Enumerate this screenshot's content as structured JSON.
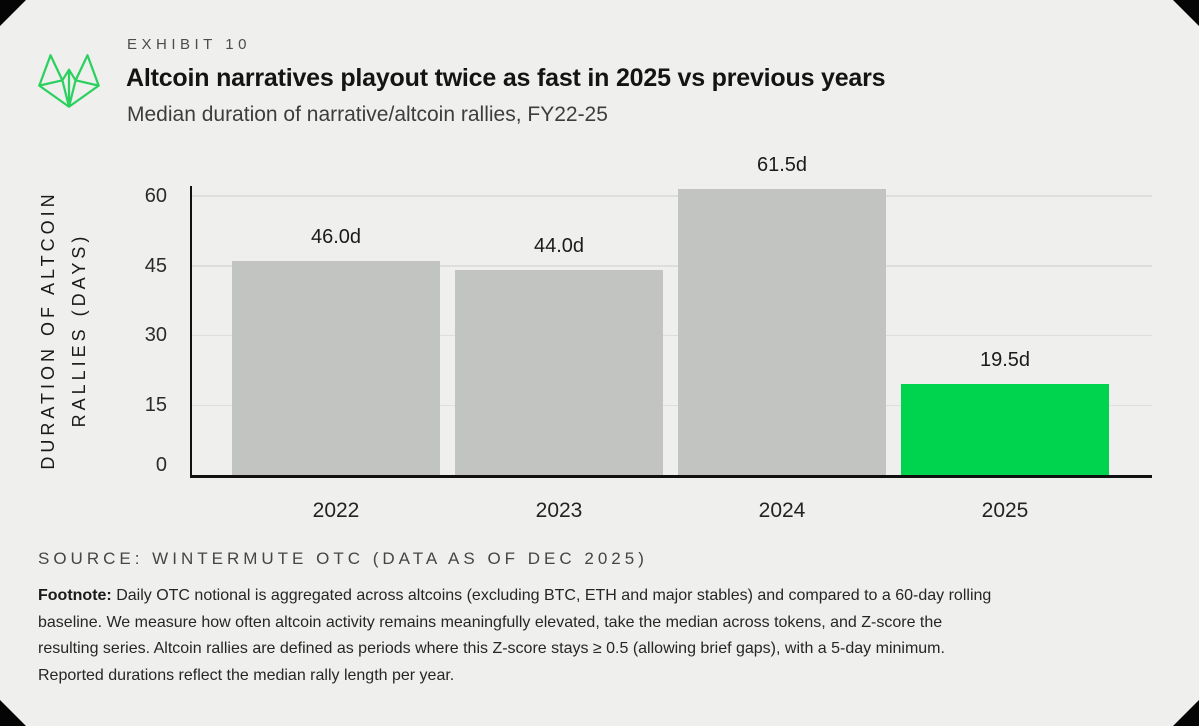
{
  "window": {
    "outer_bg": "#050505",
    "card_bg": "#efefed"
  },
  "header": {
    "exhibit_label": "EXHIBIT 10",
    "title": "Altcoin narratives playout twice as fast in 2025 vs previous years",
    "subtitle": "Median duration of narrative/altcoin rallies, FY22-25",
    "logo_color": "#2bd05f"
  },
  "chart_data": {
    "type": "bar",
    "title": "Altcoin narratives playout twice as fast in 2025 vs previous years",
    "subtitle": "Median duration of narrative/altcoin rallies, FY22-25",
    "categories": [
      "2022",
      "2023",
      "2024",
      "2025"
    ],
    "values": [
      46.0,
      44.0,
      61.5,
      19.5
    ],
    "value_labels": [
      "46.0d",
      "44.0d",
      "61.5d",
      "19.5d"
    ],
    "bar_colors": [
      "#c2c4c2",
      "#c2c4c2",
      "#c2c4c2",
      "#00d34e"
    ],
    "highlight_color": "#00d34e",
    "default_bar_color": "#c2c4c2",
    "ylabel": "DURATION OF ALTCOIN RALLIES (DAYS)",
    "ylabel_lines": [
      "DURATION OF ALTCOIN",
      "RALLIES (DAYS)"
    ],
    "yticks": [
      0,
      15,
      30,
      45,
      60
    ],
    "ylim": [
      0,
      62.1
    ],
    "xlabel": "",
    "grid": "horizontal-light",
    "gridline_color": "#dededc",
    "axis_color": "#111111",
    "legend": "none"
  },
  "source_line": "SOURCE: WINTERMUTE OTC (DATA AS OF DEC 2025)",
  "footnote": {
    "label": "Footnote:",
    "lines": [
      "Daily OTC notional is aggregated across altcoins (excluding BTC, ETH and major stables) and compared to a 60-day rolling",
      "baseline. We measure how often altcoin activity remains meaningfully elevated, take the median across tokens, and Z-score the",
      "resulting series. Altcoin rallies are defined as periods where this Z-score stays ≥ 0.5 (allowing brief gaps), with a 5-day minimum.",
      "Reported durations reflect the median rally length per year."
    ]
  }
}
